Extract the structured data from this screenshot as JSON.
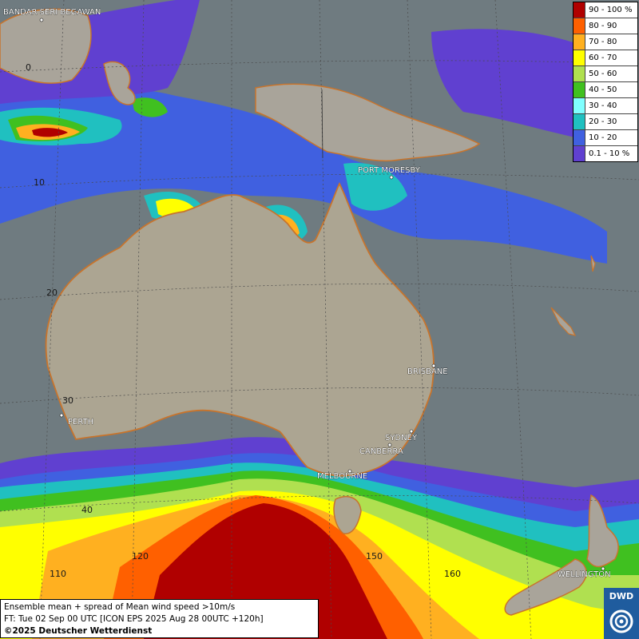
{
  "legend": [
    {
      "label": "90 - 100 %",
      "color": "#b00000"
    },
    {
      "label": "80 - 90",
      "color": "#ff6000"
    },
    {
      "label": "70 - 80",
      "color": "#ffb020"
    },
    {
      "label": "60 - 70",
      "color": "#ffff00"
    },
    {
      "label": "50 - 60",
      "color": "#b0e050"
    },
    {
      "label": "40 - 50",
      "color": "#40c020"
    },
    {
      "label": "30 - 40",
      "color": "#80ffff"
    },
    {
      "label": "20 - 30",
      "color": "#20c0c0"
    },
    {
      "label": "10 - 20",
      "color": "#4060e0"
    },
    {
      "label": "0.1 - 10 %",
      "color": "#6040d0"
    }
  ],
  "cities": {
    "bandar": "BANDAR SERI BEGAWAN",
    "port_moresby": "PORT MORESBY",
    "brisbane": "BRISBANE",
    "perth": "PERTH",
    "sydney": "SYDNEY",
    "canberra": "CANBERRA",
    "melbourne": "MELBOURNE",
    "wellington": "WELLINGTON"
  },
  "grid_labels": {
    "lat_0": "0",
    "lat_10": "10",
    "lat_20": "20",
    "lat_30": "30",
    "lat_40": "40",
    "lon_110": "110",
    "lon_120": "120",
    "lon_150": "150",
    "lon_160": "160"
  },
  "info": {
    "line1": "Ensemble mean + spread of Mean wind speed >10m/s",
    "line2": "FT: Tue 02 Sep 00 UTC [ICON EPS 2025 Aug 28 00UTC +120h]",
    "copyright": "©2025 Deutscher Wetterdienst"
  },
  "logo": {
    "text": "DWD",
    "icon": "dwd-swirl-logo-icon"
  }
}
